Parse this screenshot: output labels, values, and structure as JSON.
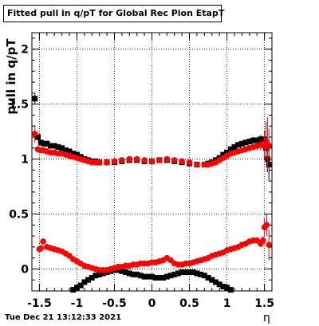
{
  "title": "Fitted pull in q/pT for Global Rec Pion EtapT",
  "timestamp": "Tue Dec 21 13:12:33 2021",
  "chart_data": {
    "type": "scatter",
    "title": "Fitted pull in q/pT for Global Rec Pion EtapT",
    "xlabel": "η",
    "ylabel": "pull in q/pT",
    "xlim": [
      -1.6,
      1.6
    ],
    "ylim": [
      -0.2,
      2.15
    ],
    "grid": true,
    "xticks": [
      -1.5,
      -1,
      -0.5,
      0,
      0.5,
      1,
      1.5
    ],
    "xtick_labels": [
      "-1.5",
      "-1",
      "-0.5",
      "0",
      "0.5",
      "1",
      "1.5"
    ],
    "yticks": [
      0,
      0.5,
      1,
      1.5,
      2
    ],
    "ytick_labels": [
      "0",
      "0.5",
      "1",
      "1.5",
      "2"
    ],
    "series": [
      {
        "color": "#000000",
        "marker": "square",
        "x": [
          -1.56,
          -1.52,
          -1.48,
          -1.44,
          -1.4,
          -1.35,
          -1.3,
          -1.25,
          -1.2,
          -1.15,
          -1.1,
          -1.05,
          -1.0,
          -0.95,
          -0.9,
          -0.85,
          -0.8,
          -0.75,
          -0.7,
          -0.6,
          -0.5,
          -0.4,
          -0.3,
          -0.2,
          -0.1,
          0.0,
          0.1,
          0.2,
          0.3,
          0.4,
          0.5,
          0.6,
          0.7,
          0.75,
          0.8,
          0.85,
          0.9,
          0.95,
          1.0,
          1.05,
          1.1,
          1.15,
          1.2,
          1.25,
          1.3,
          1.35,
          1.4,
          1.45,
          1.5,
          1.52,
          1.54,
          1.56
        ],
        "y": [
          1.55,
          1.2,
          1.15,
          1.14,
          1.14,
          1.12,
          1.12,
          1.11,
          1.1,
          1.08,
          1.07,
          1.05,
          1.04,
          1.02,
          1.0,
          0.99,
          0.98,
          0.98,
          0.97,
          0.97,
          0.97,
          0.98,
          0.99,
          0.99,
          0.98,
          0.98,
          0.99,
          0.99,
          0.98,
          0.97,
          0.96,
          0.95,
          0.95,
          0.96,
          0.97,
          0.99,
          1.01,
          1.04,
          1.06,
          1.09,
          1.11,
          1.13,
          1.14,
          1.15,
          1.16,
          1.17,
          1.17,
          1.18,
          1.18,
          1.1,
          1.0,
          0.95
        ],
        "err": [
          0.05,
          0.02,
          0.01,
          0.01,
          0.01,
          0.01,
          0.01,
          0.01,
          0.01,
          0.01,
          0.01,
          0.01,
          0.01,
          0.01,
          0.01,
          0.01,
          0.01,
          0.01,
          0.01,
          0.01,
          0.01,
          0.01,
          0.01,
          0.01,
          0.01,
          0.01,
          0.01,
          0.01,
          0.01,
          0.01,
          0.01,
          0.01,
          0.01,
          0.01,
          0.01,
          0.01,
          0.01,
          0.01,
          0.01,
          0.01,
          0.01,
          0.01,
          0.01,
          0.01,
          0.02,
          0.03,
          0.03,
          0.04,
          0.08,
          0.1,
          0.12,
          0.15
        ]
      },
      {
        "color": "#000000",
        "marker": "square",
        "x": [
          -1.05,
          -1.0,
          -0.95,
          -0.9,
          -0.85,
          -0.8,
          -0.75,
          -0.7,
          -0.65,
          -0.6,
          -0.55,
          -0.5,
          -0.45,
          -0.4,
          -0.35,
          -0.3,
          -0.25,
          -0.2,
          -0.15,
          -0.1,
          -0.05,
          0.0,
          0.05,
          0.1,
          0.15,
          0.2,
          0.25,
          0.3,
          0.35,
          0.4,
          0.45,
          0.5,
          0.55,
          0.6,
          0.65,
          0.7,
          0.75,
          0.8,
          0.85,
          0.9,
          0.95,
          1.0,
          1.05
        ],
        "y": [
          -0.19,
          -0.17,
          -0.15,
          -0.12,
          -0.1,
          -0.08,
          -0.06,
          -0.05,
          -0.04,
          -0.03,
          -0.02,
          -0.01,
          -0.01,
          -0.02,
          -0.03,
          -0.04,
          -0.05,
          -0.05,
          -0.06,
          -0.07,
          -0.07,
          -0.07,
          -0.08,
          -0.08,
          -0.08,
          -0.07,
          -0.06,
          -0.05,
          -0.04,
          -0.03,
          -0.03,
          -0.03,
          -0.03,
          -0.04,
          -0.05,
          -0.06,
          -0.08,
          -0.1,
          -0.12,
          -0.14,
          -0.16,
          -0.17,
          -0.19
        ]
      },
      {
        "color": "#ff0000",
        "marker": "circle",
        "x": [
          -1.56,
          -1.52,
          -1.48,
          -1.44,
          -1.4,
          -1.35,
          -1.3,
          -1.25,
          -1.2,
          -1.15,
          -1.1,
          -1.05,
          -1.0,
          -0.95,
          -0.9,
          -0.85,
          -0.8,
          -0.75,
          -0.7,
          -0.6,
          -0.5,
          -0.4,
          -0.3,
          -0.2,
          -0.1,
          0.0,
          0.1,
          0.2,
          0.3,
          0.4,
          0.5,
          0.6,
          0.7,
          0.75,
          0.8,
          0.85,
          0.9,
          0.95,
          1.0,
          1.05,
          1.1,
          1.15,
          1.2,
          1.25,
          1.3,
          1.35,
          1.4,
          1.45,
          1.5,
          1.52,
          1.54,
          1.56
        ],
        "y": [
          1.23,
          1.09,
          1.08,
          1.08,
          1.07,
          1.06,
          1.06,
          1.05,
          1.05,
          1.04,
          1.03,
          1.02,
          1.01,
          1.0,
          0.99,
          0.98,
          0.97,
          0.97,
          0.97,
          0.97,
          0.98,
          0.99,
          1.0,
          1.0,
          0.99,
          0.98,
          0.99,
          1.0,
          0.99,
          0.98,
          0.97,
          0.95,
          0.95,
          0.95,
          0.96,
          0.97,
          0.99,
          1.01,
          1.03,
          1.05,
          1.06,
          1.07,
          1.08,
          1.09,
          1.1,
          1.11,
          1.12,
          1.13,
          1.12,
          1.16,
          1.14,
          1.12
        ],
        "err": [
          0.08,
          0.02,
          0.01,
          0.01,
          0.01,
          0.01,
          0.01,
          0.01,
          0.01,
          0.01,
          0.01,
          0.01,
          0.01,
          0.01,
          0.01,
          0.01,
          0.01,
          0.01,
          0.01,
          0.01,
          0.01,
          0.01,
          0.01,
          0.01,
          0.01,
          0.01,
          0.01,
          0.01,
          0.01,
          0.01,
          0.01,
          0.01,
          0.01,
          0.01,
          0.01,
          0.01,
          0.01,
          0.01,
          0.01,
          0.01,
          0.01,
          0.01,
          0.01,
          0.01,
          0.02,
          0.03,
          0.04,
          0.05,
          0.12,
          0.18,
          0.24,
          0.16
        ]
      },
      {
        "color": "#ff0000",
        "marker": "circle",
        "x": [
          -1.5,
          -1.48,
          -1.45,
          -1.4,
          -1.35,
          -1.3,
          -1.25,
          -1.2,
          -1.15,
          -1.1,
          -1.05,
          -1.0,
          -0.95,
          -0.9,
          -0.85,
          -0.8,
          -0.75,
          -0.7,
          -0.65,
          -0.6,
          -0.55,
          -0.5,
          -0.45,
          -0.4,
          -0.35,
          -0.3,
          -0.25,
          -0.2,
          -0.15,
          -0.1,
          -0.05,
          0.0,
          0.05,
          0.1,
          0.15,
          0.2,
          0.25,
          0.3,
          0.35,
          0.4,
          0.45,
          0.5,
          0.55,
          0.6,
          0.65,
          0.7,
          0.75,
          0.8,
          0.85,
          0.9,
          0.95,
          1.0,
          1.05,
          1.1,
          1.15,
          1.2,
          1.25,
          1.3,
          1.35,
          1.4,
          1.45,
          1.48,
          1.5,
          1.53,
          1.56
        ],
        "y": [
          0.18,
          0.19,
          0.25,
          0.2,
          0.19,
          0.18,
          0.17,
          0.16,
          0.14,
          0.12,
          0.09,
          0.07,
          0.05,
          0.03,
          0.02,
          0.01,
          0.0,
          -0.01,
          -0.01,
          -0.01,
          0.0,
          0.01,
          0.02,
          0.02,
          0.03,
          0.03,
          0.04,
          0.04,
          0.05,
          0.05,
          0.05,
          0.06,
          0.06,
          0.07,
          0.08,
          0.1,
          0.08,
          0.05,
          0.04,
          0.04,
          0.05,
          0.05,
          0.06,
          0.07,
          0.08,
          0.09,
          0.1,
          0.12,
          0.13,
          0.14,
          0.15,
          0.17,
          0.18,
          0.19,
          0.2,
          0.22,
          0.23,
          0.25,
          0.26,
          0.26,
          0.23,
          0.26,
          0.38,
          0.4,
          0.22
        ],
        "err": [
          0.02,
          0.01,
          0.02,
          0.01,
          0.01,
          0.01,
          0.01,
          0.01,
          0.01,
          0.01,
          0.01,
          0.01,
          0.01,
          0.01,
          0.01,
          0.01,
          0.01,
          0.01,
          0.01,
          0.01,
          0.01,
          0.01,
          0.01,
          0.01,
          0.01,
          0.01,
          0.01,
          0.01,
          0.01,
          0.01,
          0.01,
          0.01,
          0.01,
          0.01,
          0.01,
          0.01,
          0.01,
          0.01,
          0.01,
          0.01,
          0.01,
          0.01,
          0.01,
          0.01,
          0.01,
          0.01,
          0.01,
          0.01,
          0.01,
          0.01,
          0.01,
          0.01,
          0.01,
          0.01,
          0.01,
          0.01,
          0.01,
          0.01,
          0.01,
          0.02,
          0.03,
          0.04,
          0.08,
          0.1,
          0.14
        ]
      }
    ]
  }
}
